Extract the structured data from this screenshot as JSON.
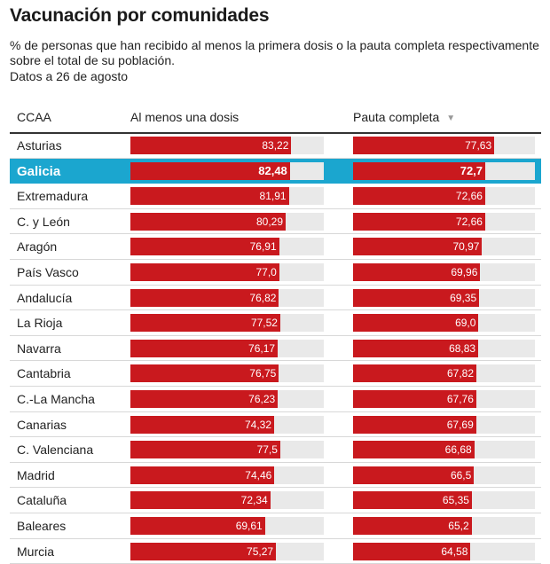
{
  "title": "Vacunación por comunidades",
  "subtitle": "% de personas que han recibido al menos la primera dosis o la pauta completa respectivamente sobre el total de su población.",
  "date_note": "Datos a 26 de agosto",
  "columns": {
    "region": "CCAA",
    "first_dose": "Al menos una dosis",
    "full": "Pauta completa",
    "sort_icon": "sort-down-icon"
  },
  "colors": {
    "bar": "#c9191e",
    "track": "#e9e9e9",
    "highlight": "#1ba6cf"
  },
  "chart_data": {
    "type": "table",
    "title": "Vacunación por comunidades",
    "value_range": [
      0,
      100
    ],
    "highlighted": "Galicia",
    "sorted_by": "Pauta completa",
    "rows": [
      {
        "name": "Asturias",
        "first": "83,22",
        "full": "77,63"
      },
      {
        "name": "Galicia",
        "first": "82,48",
        "full": "72,7"
      },
      {
        "name": "Extremadura",
        "first": "81,91",
        "full": "72,66"
      },
      {
        "name": "C. y León",
        "first": "80,29",
        "full": "72,66"
      },
      {
        "name": "Aragón",
        "first": "76,91",
        "full": "70,97"
      },
      {
        "name": "País Vasco",
        "first": "77,0",
        "full": "69,96"
      },
      {
        "name": "Andalucía",
        "first": "76,82",
        "full": "69,35"
      },
      {
        "name": "La Rioja",
        "first": "77,52",
        "full": "69,0"
      },
      {
        "name": "Navarra",
        "first": "76,17",
        "full": "68,83"
      },
      {
        "name": "Cantabria",
        "first": "76,75",
        "full": "67,82"
      },
      {
        "name": "C.-La Mancha",
        "first": "76,23",
        "full": "67,76"
      },
      {
        "name": "Canarias",
        "first": "74,32",
        "full": "67,69"
      },
      {
        "name": "C. Valenciana",
        "first": "77,5",
        "full": "66,68"
      },
      {
        "name": "Madrid",
        "first": "74,46",
        "full": "66,5"
      },
      {
        "name": "Cataluña",
        "first": "72,34",
        "full": "65,35"
      },
      {
        "name": "Baleares",
        "first": "69,61",
        "full": "65,2"
      },
      {
        "name": "Murcia",
        "first": "75,27",
        "full": "64,58"
      }
    ]
  }
}
